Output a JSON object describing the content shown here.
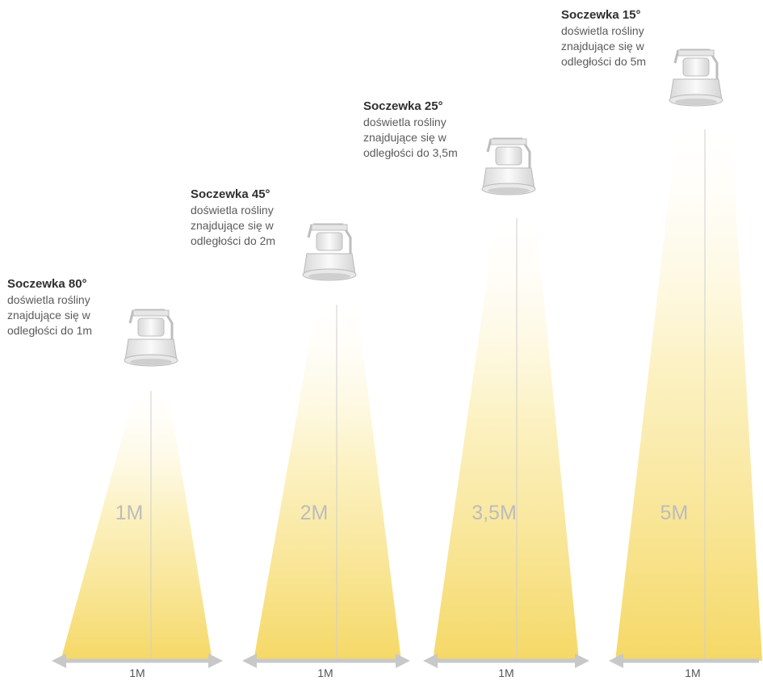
{
  "lamps": [
    {
      "title": "Soczewka 80°",
      "lines": [
        "doświetla rośliny",
        "znajdujące się w",
        "odległości do 1m"
      ],
      "distance_label": "1M",
      "width_label": "1M"
    },
    {
      "title": "Soczewka 45°",
      "lines": [
        "doświetla rośliny",
        "znajdujące się w",
        "odległości do 2m"
      ],
      "distance_label": "2M",
      "width_label": "1M"
    },
    {
      "title": "Soczewka 25°",
      "lines": [
        "doświetla rośliny",
        "znajdujące się w",
        "odległości do 3,5m"
      ],
      "distance_label": "3,5M",
      "width_label": "1M"
    },
    {
      "title": "Soczewka 15°",
      "lines": [
        "doświetla rośliny",
        "znajdujące się w",
        "odległości do 5m"
      ],
      "distance_label": "5M",
      "width_label": "1M"
    }
  ],
  "colors": {
    "beam": "#f7dc6f",
    "beam_fade": "#fffbe9",
    "arrow": "#c8c8c8",
    "lamp_body": "#f1f1f1",
    "lamp_outline": "#b9b9b9"
  }
}
